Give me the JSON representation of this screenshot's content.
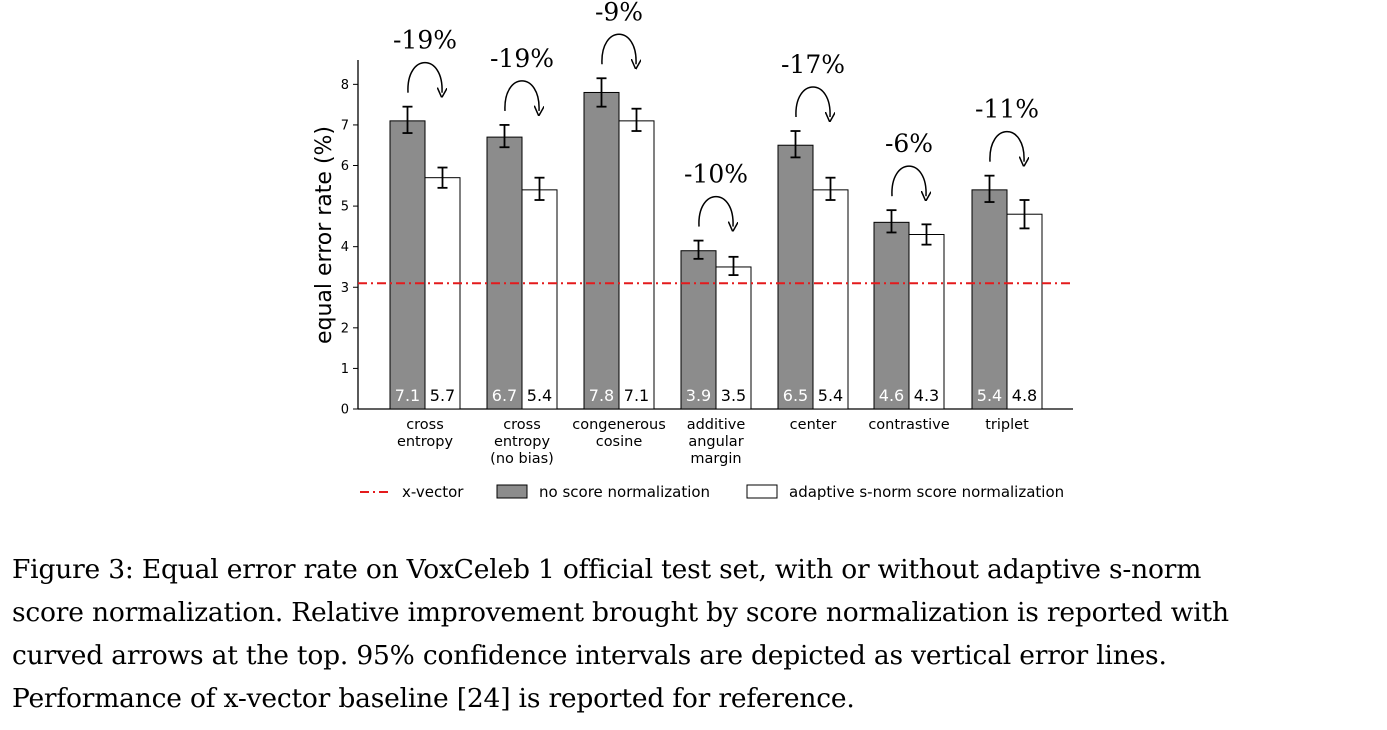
{
  "chart_data": {
    "type": "bar",
    "ylabel": "equal error rate (%)",
    "xlabel": "",
    "ylim": [
      0,
      8.6
    ],
    "yticks": [
      "0",
      "1",
      "2",
      "3",
      "4",
      "5",
      "6",
      "7",
      "8"
    ],
    "categories": [
      [
        "cross",
        "entropy"
      ],
      [
        "cross",
        "entropy",
        "(no bias)"
      ],
      [
        "congenerous",
        "cosine"
      ],
      [
        "additive",
        "angular",
        "margin"
      ],
      [
        "center"
      ],
      [
        "contrastive"
      ],
      [
        "triplet"
      ]
    ],
    "series": [
      {
        "name": "no score normalization",
        "color": "#8c8c8c",
        "values": [
          7.1,
          6.7,
          7.8,
          3.9,
          6.5,
          4.6,
          5.4
        ],
        "labels": [
          "7.1",
          "6.7",
          "7.8",
          "3.9",
          "6.5",
          "4.6",
          "5.4"
        ],
        "ci_low": [
          6.8,
          6.45,
          7.45,
          3.7,
          6.2,
          4.35,
          5.1
        ],
        "ci_high": [
          7.45,
          7.0,
          8.15,
          4.15,
          6.85,
          4.9,
          5.75
        ]
      },
      {
        "name": "adaptive s-norm score normalization",
        "color": "#ffffff",
        "values": [
          5.7,
          5.4,
          7.1,
          3.5,
          5.4,
          4.3,
          4.8
        ],
        "labels": [
          "5.7",
          "5.4",
          "7.1",
          "3.5",
          "5.4",
          "4.3",
          "4.8"
        ],
        "ci_low": [
          5.45,
          5.15,
          6.85,
          3.3,
          5.15,
          4.05,
          4.45
        ],
        "ci_high": [
          5.95,
          5.7,
          7.4,
          3.75,
          5.7,
          4.55,
          5.15
        ]
      }
    ],
    "reference_line": {
      "name": "x-vector",
      "value": 3.1,
      "color": "#e41a1c"
    },
    "improvements": [
      "-19%",
      "-19%",
      "-9%",
      "-10%",
      "-17%",
      "-6%",
      "-11%"
    ],
    "legend": [
      "x-vector",
      "no score normalization",
      "adaptive s-norm score normalization"
    ],
    "legend_position": "bottom",
    "grid": false
  },
  "caption": [
    "Figure 3: Equal error rate on VoxCeleb 1 official test set, with or without adaptive s-norm",
    "score normalization. Relative improvement brought by score normalization is reported with",
    "curved arrows at the top.  95% confidence intervals are depicted as vertical error lines.",
    "Performance of x-vector baseline [24] is reported for reference."
  ]
}
